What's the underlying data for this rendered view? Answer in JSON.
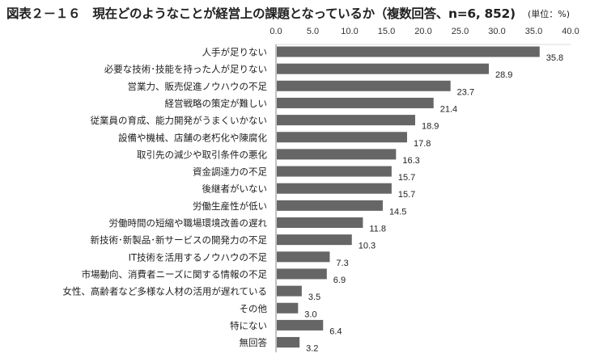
{
  "chart_data": {
    "type": "bar",
    "orientation": "horizontal",
    "title": "図表２－１６　現在どのようなことが経営上の課題となっているか（複数回答、n=6, 852)",
    "unit_label": "(単位：%)",
    "xlim": [
      0,
      40
    ],
    "xticks": [
      "0.0",
      "5.0",
      "10.0",
      "15.0",
      "20.0",
      "25.0",
      "30.0",
      "35.0",
      "40.0"
    ],
    "axis_position": "top",
    "grid": false,
    "bar_color": "#666666",
    "categories": [
      "人手が足りない",
      "必要な技術･技能を持った人が足りない",
      "営業力、販売促進ノウハウの不足",
      "経営戦略の策定が難しい",
      "従業員の育成、能力開発がうまくいかない",
      "設備や機械、店舗の老朽化や陳腐化",
      "取引先の減少や取引条件の悪化",
      "資金調達力の不足",
      "後継者がいない",
      "労働生産性が低い",
      "労働時間の短縮や職場環境改善の遅れ",
      "新技術･新製品･新サービスの開発力の不足",
      "IT技術を活用するノウハウの不足",
      "市場動向、消費者ニーズに関する情報の不足",
      "女性、高齢者など多様な人材の活用が遅れている",
      "その他",
      "特にない",
      "無回答"
    ],
    "values": [
      35.8,
      28.9,
      23.7,
      21.4,
      18.9,
      17.8,
      16.3,
      15.7,
      15.7,
      14.5,
      11.8,
      10.3,
      7.3,
      6.9,
      3.5,
      3.0,
      6.4,
      3.2
    ],
    "value_labels": [
      "35.8",
      "28.9",
      "23.7",
      "21.4",
      "18.9",
      "17.8",
      "16.3",
      "15.7",
      "15.7",
      "14.5",
      "11.8",
      "10.3",
      "7.3",
      "6.9",
      "3.5",
      "3.0",
      "6.4",
      "3.2"
    ]
  }
}
